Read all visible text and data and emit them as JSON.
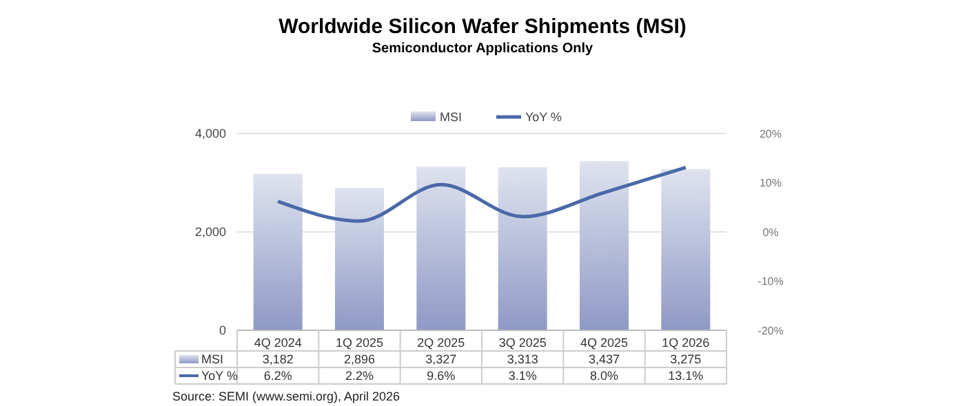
{
  "chart_data": {
    "type": "bar",
    "title": "Worldwide Silicon Wafer Shipments (MSI)",
    "subtitle": "Semiconductor Applications Only",
    "categories": [
      "4Q 2024",
      "1Q 2025",
      "2Q 2025",
      "3Q 2025",
      "4Q 2025",
      "1Q 2026"
    ],
    "series": [
      {
        "name": "MSI",
        "color": "#b0b9d8",
        "values": [
          3182,
          2896,
          3327,
          3313,
          3437,
          3275
        ],
        "value_labels": [
          "3,182",
          "2,896",
          "3,327",
          "3,313",
          "3,437",
          "3,275"
        ]
      },
      {
        "name": "YoY %",
        "type": "line",
        "axis": "y2",
        "color": "#4a69a8",
        "values": [
          6.2,
          2.2,
          9.6,
          3.1,
          8.0,
          13.1
        ],
        "value_labels": [
          "6.2%",
          "2.2%",
          "9.6%",
          "3.1%",
          "8.0%",
          "13.1%"
        ]
      }
    ],
    "ylim": [
      0,
      4000
    ],
    "yticks": [
      0,
      {
        "value": 2000,
        "label": "2,000"
      },
      {
        "value": 4000,
        "label": "4,000"
      }
    ],
    "y2lim": [
      -20,
      20
    ],
    "y2ticks": [
      {
        "value": -20,
        "label": "-20%"
      },
      {
        "value": -10,
        "label": "-10%"
      },
      {
        "value": 0,
        "label": "0%"
      },
      {
        "value": 10,
        "label": "10%"
      },
      {
        "value": 20,
        "label": "20%"
      }
    ],
    "grid": "y",
    "legend": "top",
    "line_style": "solid",
    "marker": "none",
    "annotations": [
      "Source: SEMI (www.semi.org), April 2026"
    ]
  }
}
